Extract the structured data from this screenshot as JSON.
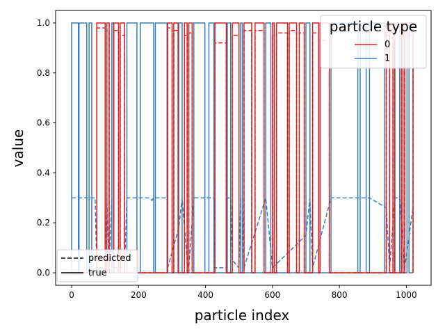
{
  "chart_data": {
    "type": "line",
    "xlabel": "particle index",
    "ylabel": "value",
    "xlim": [
      -48,
      1074
    ],
    "ylim": [
      -0.05,
      1.05
    ],
    "x_ticks": [
      0,
      200,
      400,
      600,
      800,
      1000
    ],
    "y_ticks": [
      0.0,
      0.2,
      0.4,
      0.6,
      0.8,
      1.0
    ],
    "x_tick_labels": [
      "0",
      "200",
      "400",
      "600",
      "800",
      "1000"
    ],
    "y_tick_labels": [
      "0.0",
      "0.2",
      "0.4",
      "0.6",
      "0.8",
      "1.0"
    ],
    "grid": false,
    "legends": {
      "type_legend": {
        "title": "particle type",
        "placement": "upper right",
        "entries": [
          "0",
          "1"
        ]
      },
      "style_legend": {
        "placement": "lower left",
        "entries": [
          "predicted",
          "true"
        ]
      }
    },
    "colors": {
      "type0": "#e41a1c",
      "type1": "#377eb8"
    },
    "series": [
      {
        "name": "0",
        "style": "true",
        "color": "#e41a1c",
        "segments": [
          [
            75,
            100
          ],
          [
            105,
            112
          ],
          [
            126,
            140
          ],
          [
            145,
            158
          ],
          [
            287,
            300
          ],
          [
            305,
            318
          ],
          [
            337,
            345
          ],
          [
            350,
            360
          ],
          [
            428,
            462
          ],
          [
            480,
            500
          ],
          [
            515,
            538
          ],
          [
            548,
            575
          ],
          [
            600,
            605
          ],
          [
            612,
            645
          ],
          [
            650,
            672
          ],
          [
            680,
            695
          ],
          [
            720,
            738
          ],
          [
            742,
            770
          ],
          [
            940,
            950
          ],
          [
            960,
            965
          ],
          [
            985,
            990
          ],
          [
            995,
            1020
          ]
        ],
        "points_x": [
          0,
          1020
        ],
        "points_y": [
          0,
          0
        ]
      },
      {
        "name": "0",
        "style": "predicted",
        "color": "#e41a1c",
        "peaks": [
          [
            75,
            100,
            0.98
          ],
          [
            105,
            112,
            0.97
          ],
          [
            126,
            140,
            0.97
          ],
          [
            145,
            158,
            0.95
          ],
          [
            287,
            300,
            0.98
          ],
          [
            305,
            318,
            0.97
          ],
          [
            337,
            345,
            0.95
          ],
          [
            350,
            360,
            0.96
          ],
          [
            428,
            462,
            0.92
          ],
          [
            480,
            500,
            0.95
          ],
          [
            515,
            538,
            0.97
          ],
          [
            548,
            575,
            0.97
          ],
          [
            600,
            605,
            0.95
          ],
          [
            612,
            645,
            0.96
          ],
          [
            650,
            672,
            0.97
          ],
          [
            680,
            695,
            0.96
          ],
          [
            720,
            738,
            0.96
          ],
          [
            742,
            770,
            0.93
          ],
          [
            940,
            950,
            0.95
          ],
          [
            960,
            965,
            0.9
          ],
          [
            985,
            990,
            0.96
          ],
          [
            995,
            1020,
            0.95
          ]
        ],
        "points_x": [
          0,
          1020
        ],
        "points_y": [
          0,
          0
        ]
      },
      {
        "name": "1",
        "style": "true",
        "color": "#377eb8",
        "segments": [
          [
            0,
            20
          ],
          [
            22,
            45
          ],
          [
            52,
            60
          ],
          [
            120,
            125
          ],
          [
            165,
            195
          ],
          [
            205,
            245
          ],
          [
            250,
            285
          ],
          [
            320,
            330
          ],
          [
            365,
            398
          ],
          [
            410,
            425
          ],
          [
            465,
            475
          ],
          [
            505,
            510
          ],
          [
            580,
            595
          ],
          [
            700,
            712
          ],
          [
            775,
            855
          ],
          [
            862,
            880
          ],
          [
            890,
            935
          ],
          [
            966,
            980
          ],
          [
            1002,
            1008
          ]
        ],
        "points_x": [
          0,
          1020
        ],
        "points_y": [
          0,
          0
        ]
      },
      {
        "name": "1",
        "style": "predicted",
        "color": "#377eb8",
        "baseline": 0.3,
        "x": [
          0,
          5,
          60,
          70,
          75,
          100,
          105,
          112,
          120,
          125,
          126,
          158,
          165,
          200,
          230,
          240,
          245,
          250,
          285,
          287,
          320,
          330,
          345,
          350,
          365,
          410,
          425,
          428,
          462,
          465,
          475,
          480,
          500,
          505,
          510,
          515,
          580,
          600,
          700,
          712,
          720,
          775,
          880,
          890,
          940,
          950,
          966,
          980,
          995,
          1020
        ],
        "y": [
          0.3,
          0.3,
          0.3,
          0.3,
          0.02,
          0.02,
          0.3,
          0.02,
          0.3,
          0.3,
          0.02,
          0.02,
          0.3,
          0.3,
          0.3,
          0.29,
          0.3,
          0.3,
          0.3,
          0.02,
          0.18,
          0.3,
          0.05,
          0.02,
          0.3,
          0.3,
          0.3,
          0.02,
          0.02,
          0.3,
          0.3,
          0.05,
          0.02,
          0.3,
          0.3,
          0.02,
          0.3,
          0.02,
          0.15,
          0.3,
          0.02,
          0.3,
          0.3,
          0.3,
          0.26,
          0.02,
          0.3,
          0.3,
          0.02,
          0.26
        ]
      }
    ]
  }
}
